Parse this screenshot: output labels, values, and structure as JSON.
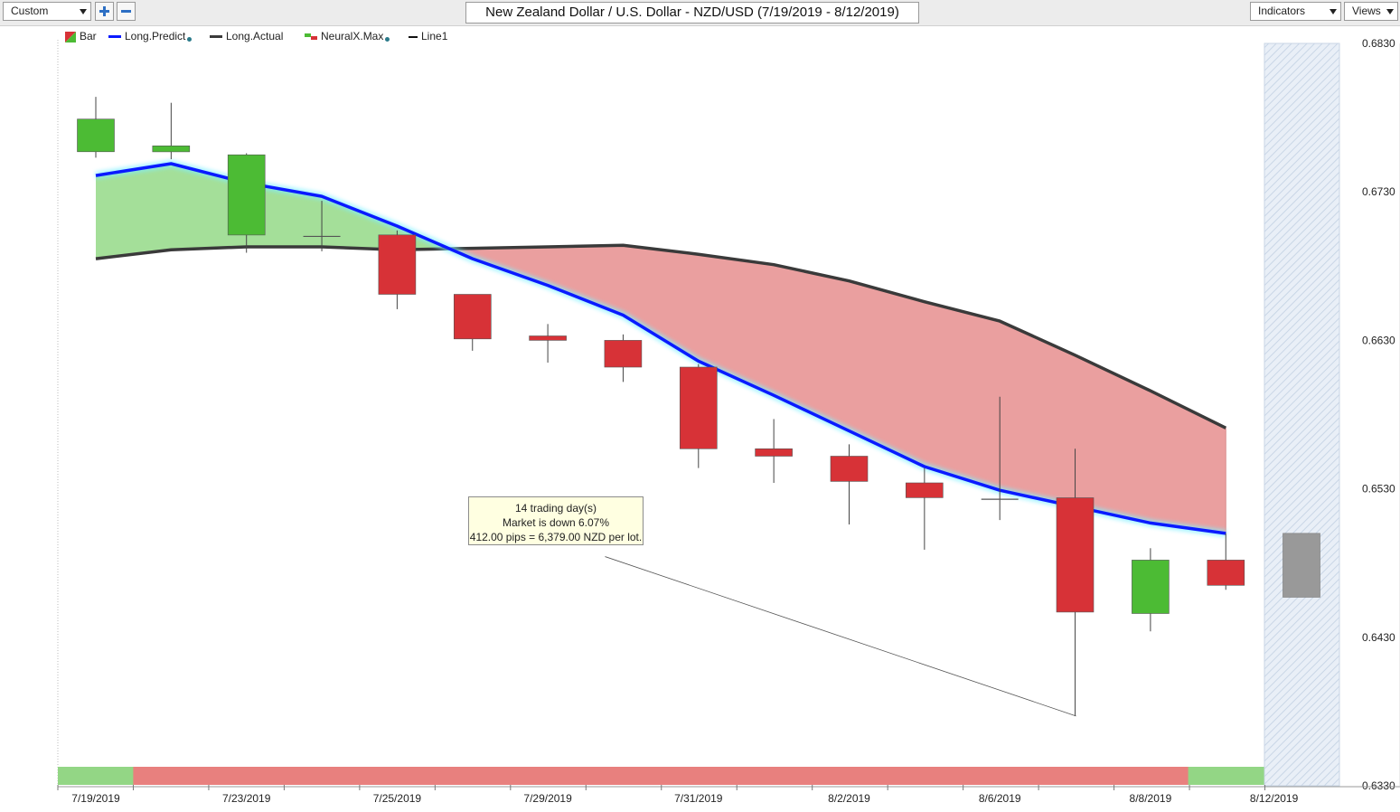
{
  "toolbar": {
    "preset_value": "Custom",
    "title": "New Zealand Dollar / U.S. Dollar - NZD/USD (7/19/2019 - 8/12/2019)",
    "indicators_label": "Indicators",
    "views_label": "Views"
  },
  "legend": {
    "bar": "Bar",
    "long_predict": "Long.Predict",
    "long_actual": "Long.Actual",
    "neuralx_max": "NeuralX.Max",
    "line1": "Line1"
  },
  "callout": {
    "line1": "14 trading day(s)",
    "line2": "Market is down 6.07%",
    "line3": "412.00 pips = 6,379.00 NZD per lot."
  },
  "colors": {
    "up": "#4cbb34",
    "down": "#d73237",
    "predict": "#0a1aff",
    "actual": "#3a3a3a",
    "fill_bull": "#9fdd93",
    "fill_bear": "#e99a9a",
    "forecast_candle": "#999999"
  },
  "chart_data": {
    "type": "candlestick",
    "ylim": [
      0.633,
      0.683
    ],
    "y_ticks": [
      "0.6830",
      "0.6730",
      "0.6630",
      "0.6530",
      "0.6430",
      "0.6330"
    ],
    "x_tick_labels": [
      "7/19/2019",
      "7/23/2019",
      "7/25/2019",
      "7/29/2019",
      "7/31/2019",
      "8/2/2019",
      "8/6/2019",
      "8/8/2019",
      "8/12/2019"
    ],
    "x_tick_positions": [
      0,
      2,
      4,
      6,
      8,
      10,
      12,
      14,
      16
    ],
    "candles": [
      {
        "open": 0.6757,
        "high": 0.6794,
        "low": 0.6753,
        "close": 0.6779
      },
      {
        "open": 0.6757,
        "high": 0.679,
        "low": 0.6752,
        "close": 0.6761
      },
      {
        "open": 0.6701,
        "high": 0.6756,
        "low": 0.6689,
        "close": 0.6755
      },
      {
        "open": 0.67,
        "high": 0.6724,
        "low": 0.669,
        "close": 0.67
      },
      {
        "open": 0.6701,
        "high": 0.6704,
        "low": 0.6651,
        "close": 0.6661
      },
      {
        "open": 0.6661,
        "high": 0.6661,
        "low": 0.6623,
        "close": 0.6631
      },
      {
        "open": 0.6633,
        "high": 0.6641,
        "low": 0.6615,
        "close": 0.663
      },
      {
        "open": 0.663,
        "high": 0.6634,
        "low": 0.6602,
        "close": 0.6612
      },
      {
        "open": 0.6612,
        "high": 0.6614,
        "low": 0.6544,
        "close": 0.6557
      },
      {
        "open": 0.6557,
        "high": 0.6577,
        "low": 0.6534,
        "close": 0.6552
      },
      {
        "open": 0.6552,
        "high": 0.656,
        "low": 0.6506,
        "close": 0.6535
      },
      {
        "open": 0.6534,
        "high": 0.6544,
        "low": 0.6489,
        "close": 0.6524
      },
      {
        "open": 0.6523,
        "high": 0.6592,
        "low": 0.6509,
        "close": 0.6523
      },
      {
        "open": 0.6524,
        "high": 0.6557,
        "low": 0.6377,
        "close": 0.6447
      },
      {
        "open": 0.6446,
        "high": 0.649,
        "low": 0.6434,
        "close": 0.6482
      },
      {
        "open": 0.6482,
        "high": 0.65,
        "low": 0.6462,
        "close": 0.6465
      }
    ],
    "forecast_candle": {
      "top": 0.65,
      "bottom": 0.6457
    },
    "long_predict": [
      0.6741,
      0.6749,
      0.6736,
      0.6727,
      0.6707,
      0.6685,
      0.6667,
      0.6647,
      0.6616,
      0.6593,
      0.6569,
      0.6545,
      0.6529,
      0.6518,
      0.6507,
      0.65
    ],
    "long_actual": [
      0.6685,
      0.6691,
      0.6693,
      0.6693,
      0.6691,
      0.6692,
      0.6693,
      0.6694,
      0.6688,
      0.6681,
      0.667,
      0.6656,
      0.6643,
      0.662,
      0.6596,
      0.6571
    ],
    "neuralx_bar": [
      "up",
      "down",
      "down",
      "down",
      "down",
      "down",
      "down",
      "down",
      "down",
      "down",
      "down",
      "down",
      "down",
      "down",
      "down",
      "up"
    ],
    "trendline": {
      "from_index": 7,
      "from_value": 0.6488,
      "to_index": 13,
      "to_value": 0.6377
    }
  }
}
